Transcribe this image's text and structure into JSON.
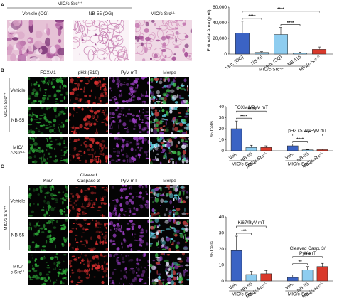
{
  "panels": {
    "a": {
      "label": "A",
      "header": "MIC/c-Src",
      "header_sup": "+/+",
      "header2": "MIC/c-Src",
      "header2_sup": "L/L",
      "images": [
        "Vehicle (OG)",
        "NB-55 (OG)"
      ]
    },
    "b": {
      "label": "B",
      "columns": [
        [
          "FOXM1"
        ],
        [
          "pH3 (S10)"
        ],
        [
          "PyV mT"
        ],
        [
          "Merge"
        ]
      ],
      "column_colors": [
        "#2fae3a",
        "#d93030",
        "#9c3fc4",
        "#111111"
      ],
      "rows": [
        [
          "Vehicle"
        ],
        [
          "NB-55"
        ],
        [
          "MIC/",
          "c-Src"
        ]
      ],
      "last_row_sup": "L/L",
      "side": "MIC/c-Src",
      "side_sup": "+/+"
    },
    "c": {
      "label": "C",
      "columns": [
        [
          "Ki67"
        ],
        [
          "Cleaved",
          "Caspase 3"
        ],
        [
          "PyV mT"
        ],
        [
          "Merge"
        ]
      ],
      "column_colors": [
        "#2fae3a",
        "#d93030",
        "#9c3fc4",
        "#111111"
      ],
      "rows": [
        [
          "Vehicle"
        ],
        [
          "NB-55"
        ],
        [
          "MIC/",
          "c-Src"
        ]
      ],
      "last_row_sup": "L/L",
      "side": "MIC/c-Src",
      "side_sup": "+/+"
    }
  },
  "chart_data": [
    {
      "type": "bar",
      "y_label": "Epithelial Area (µm²)",
      "categories": [
        "Veh. (OG)",
        "NB-55",
        "Veh. (SQ)",
        "NB-115",
        "MIC/c-Src"
      ],
      "superscripts": {
        "4": "L/L"
      },
      "values": [
        27000,
        2000,
        25000,
        1500,
        6000
      ],
      "errors": [
        15000,
        1000,
        9000,
        800,
        3000
      ],
      "colors": [
        "#3b63c4",
        "#8ecdf0",
        "#8ecdf0",
        "#8ecdf0",
        "#d9392b"
      ],
      "ylim": [
        0,
        60000
      ],
      "yticks": [
        0,
        {
          "value": 20000,
          "label": "20,000"
        },
        {
          "value": 40000,
          "label": "40,000"
        },
        {
          "value": 60000,
          "label": "60,000"
        }
      ],
      "group_label": "MIC/c-Src",
      "group_label_sup": "+/+",
      "group_spans": [
        [
          0,
          3
        ]
      ],
      "significance": [
        {
          "from": 0,
          "to": 1,
          "label": "****"
        },
        {
          "from": 2,
          "to": 3,
          "label": "****"
        },
        {
          "from": 0,
          "to": 4,
          "label": "****"
        }
      ]
    },
    {
      "type": "bar",
      "y_label": "% Cells",
      "categories": [
        "Veh.",
        "NB-55",
        "MIC/c-Src",
        "Veh.",
        "NB-55",
        "MIC/c-Src"
      ],
      "superscripts": {
        "2": "L/L",
        "5": "L/L"
      },
      "values": [
        20,
        3,
        3,
        4.5,
        0.8,
        1
      ],
      "errors": [
        7,
        2,
        1.5,
        1.5,
        0.3,
        0.5
      ],
      "colors": [
        "#3b63c4",
        "#8ecdf0",
        "#d9392b",
        "#3b63c4",
        "#8ecdf0",
        "#d9392b"
      ],
      "ylim": [
        0,
        40
      ],
      "yticks": [
        0,
        10,
        20,
        30,
        40
      ],
      "subtitles": [
        [
          "FOXM1/PyV mT"
        ],
        [
          "pH3 (S10)/PyV mT"
        ]
      ],
      "group_label": "MIC/c-Src",
      "group_label_sup": "+/+",
      "group_spans": [
        [
          0,
          1
        ],
        [
          3,
          4
        ]
      ],
      "significance": [
        {
          "from": 0,
          "to": 1,
          "label": "****"
        },
        {
          "from": 0,
          "to": 2,
          "label": "****"
        },
        {
          "from": 3,
          "to": 4,
          "label": "****"
        },
        {
          "from": 3,
          "to": 5,
          "label": "****"
        }
      ]
    },
    {
      "type": "bar",
      "y_label": "% Cells",
      "categories": [
        "Veh.",
        "NB-55",
        "MIC/c-Src",
        "Veh.",
        "NB-55",
        "MIC/c-Src"
      ],
      "superscripts": {
        "2": "L/L",
        "5": "L/L"
      },
      "values": [
        19,
        4,
        4.5,
        2.2,
        7,
        9
      ],
      "errors": [
        9,
        2,
        2,
        1.5,
        2,
        2
      ],
      "colors": [
        "#3b63c4",
        "#8ecdf0",
        "#d9392b",
        "#3b63c4",
        "#8ecdf0",
        "#d9392b"
      ],
      "ylim": [
        0,
        40
      ],
      "yticks": [
        0,
        10,
        20,
        30,
        40
      ],
      "subtitles": [
        [
          "Ki67/PyV mT"
        ],
        [
          "Cleaved Casp. 3/",
          "PyV mT"
        ]
      ],
      "group_label": "MIC/c-Src",
      "group_label_sup": "+/+",
      "group_spans": [
        [
          0,
          1
        ],
        [
          3,
          4
        ]
      ],
      "significance": [
        {
          "from": 0,
          "to": 1,
          "label": "***"
        },
        {
          "from": 0,
          "to": 2,
          "label": "**"
        },
        {
          "from": 3,
          "to": 4,
          "label": "**"
        },
        {
          "from": 3,
          "to": 5,
          "label": "****"
        }
      ]
    }
  ]
}
